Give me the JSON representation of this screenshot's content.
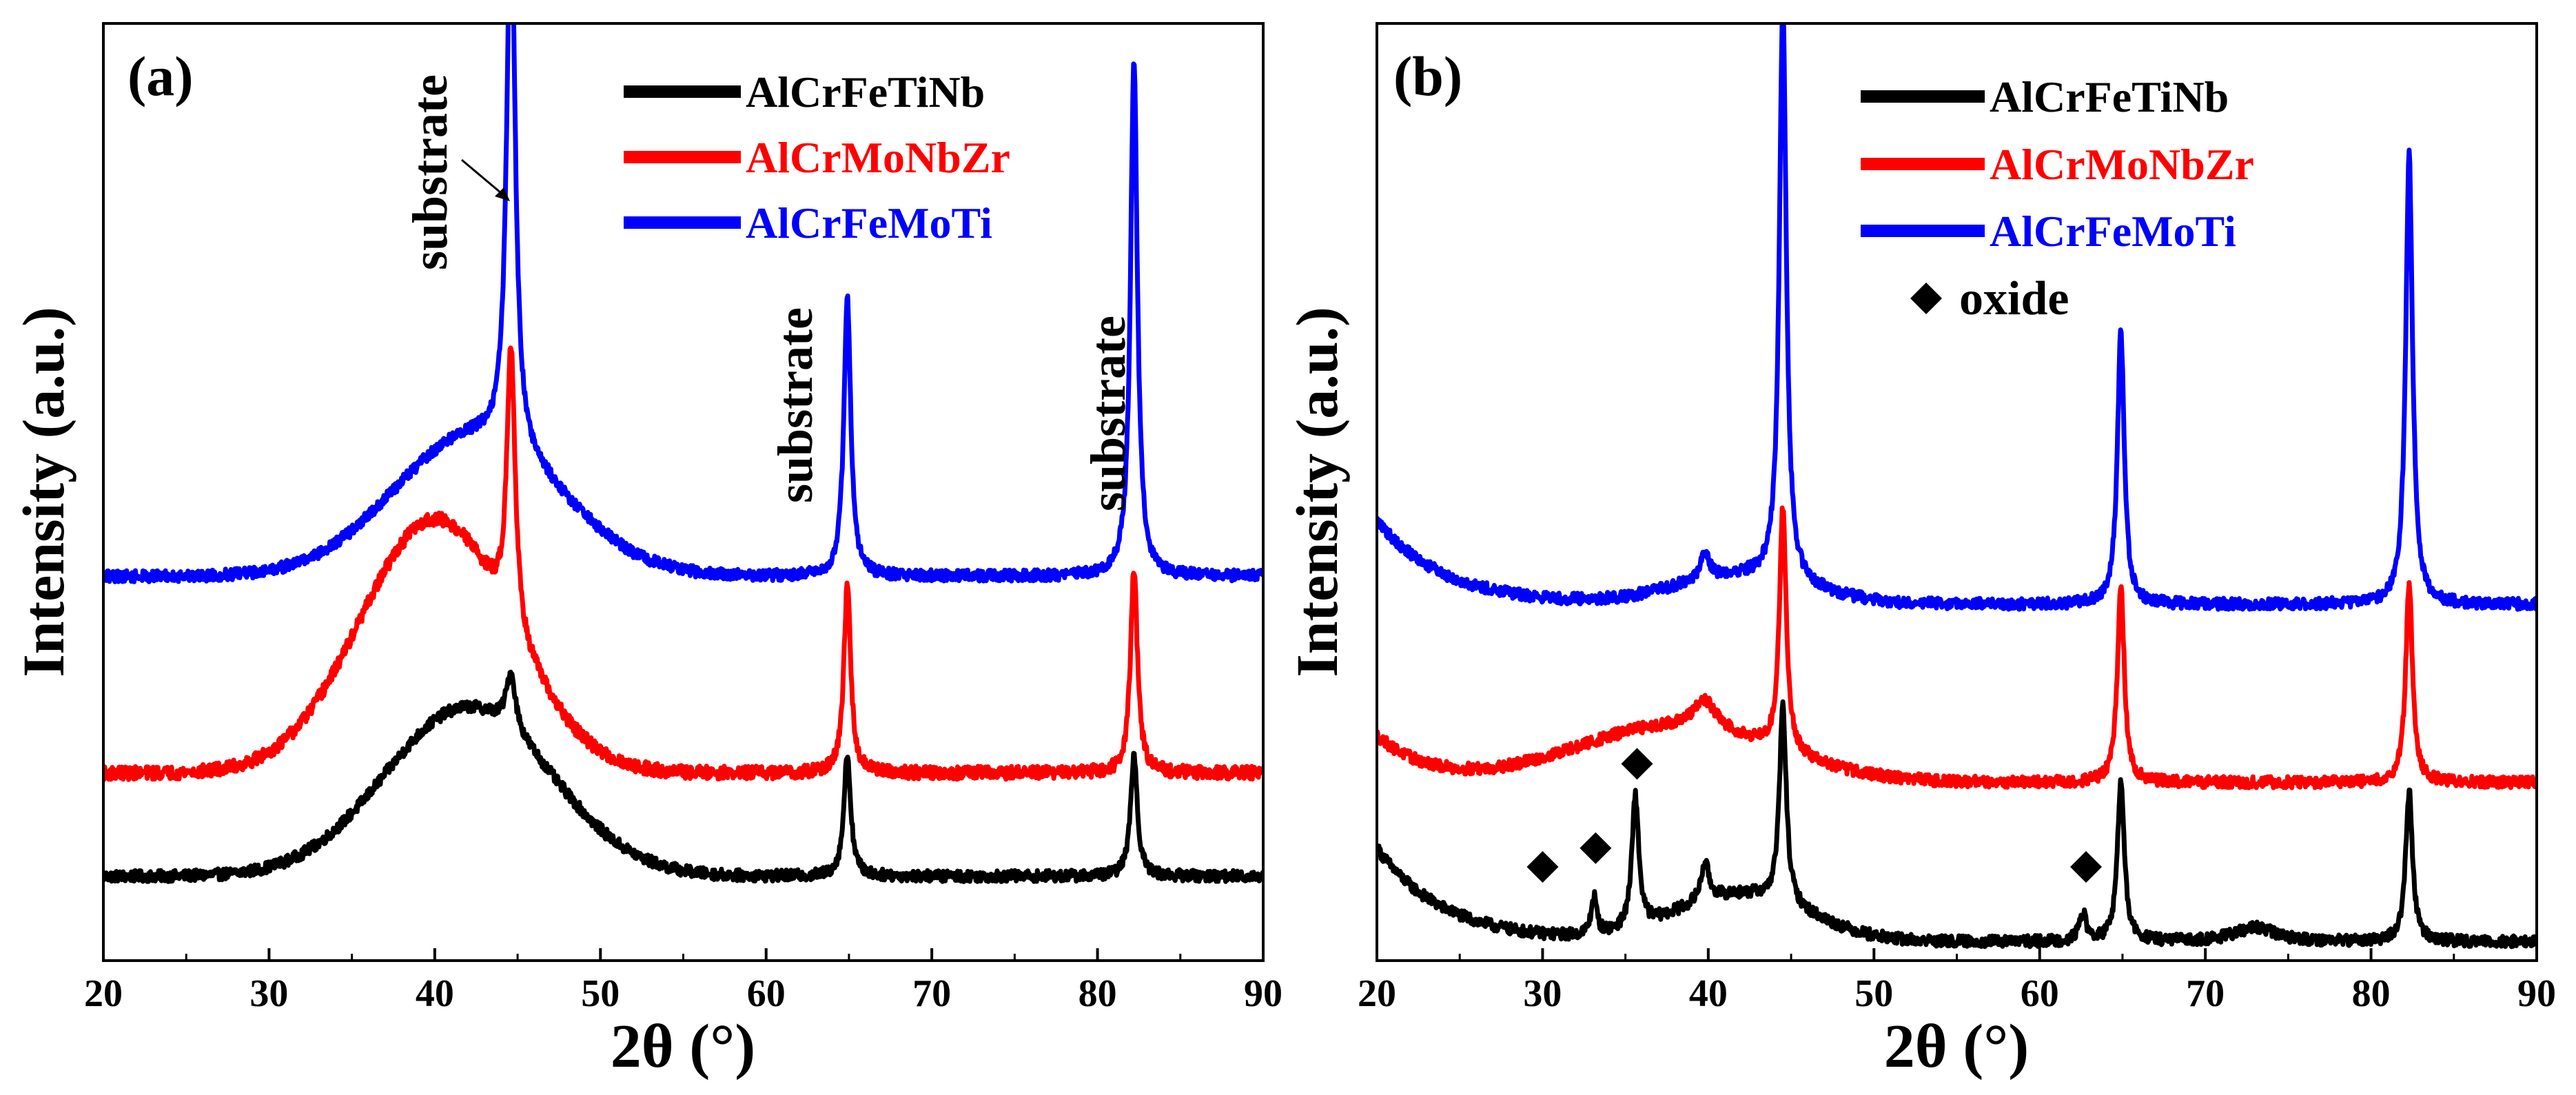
{
  "figure": {
    "panels": [
      {
        "panel_label": "(a)",
        "xlabel": "2θ (°)",
        "ylabel": "Intensity (a.u.)",
        "annotations": [
          "substrate",
          "substrate",
          "substrate"
        ]
      },
      {
        "panel_label": "(b)",
        "xlabel": "2θ (°)",
        "ylabel": "Intensity (a.u.)",
        "oxide_legend": "oxide"
      }
    ]
  },
  "colors": {
    "AlCrFeTiNb": "#000000",
    "AlCrMoNbZr": "#ff0000",
    "AlCrFeMoTi": "#0000ff"
  },
  "chart_data": [
    {
      "type": "line",
      "title": "(a)",
      "xlabel": "2θ (°)",
      "ylabel": "Intensity (a.u.)",
      "xlim": [
        20,
        90
      ],
      "xticks": [
        20,
        30,
        40,
        50,
        60,
        70,
        80,
        90
      ],
      "ylim": [
        0,
        100
      ],
      "y_ticks_shown": false,
      "legend": {
        "position": "top-right",
        "entries": [
          "AlCrFeTiNb",
          "AlCrMoNbZr",
          "AlCrFeMoTi"
        ]
      },
      "annotations": [
        {
          "text": "substrate",
          "x": 44.5,
          "arrow": true
        },
        {
          "text": "substrate",
          "x": 64.8
        },
        {
          "text": "substrate",
          "x": 82.2
        }
      ],
      "series": [
        {
          "name": "AlCrFeTiNb",
          "color": "#000000",
          "baseline": 9,
          "noise": 0.6,
          "features": [
            {
              "type": "hump",
              "center": 42,
              "width": 5,
              "height": 18
            },
            {
              "type": "peak",
              "center": 44.6,
              "width": 0.35,
              "height": 6
            },
            {
              "type": "peak",
              "center": 64.9,
              "width": 0.25,
              "height": 13
            },
            {
              "type": "peak",
              "center": 82.2,
              "width": 0.25,
              "height": 13
            }
          ]
        },
        {
          "name": "AlCrMoNbZr",
          "color": "#ff0000",
          "baseline": 20,
          "noise": 0.7,
          "features": [
            {
              "type": "hump",
              "center": 40,
              "width": 4.5,
              "height": 27
            },
            {
              "type": "peak",
              "center": 44.6,
              "width": 0.3,
              "height": 30
            },
            {
              "type": "peak",
              "center": 64.9,
              "width": 0.25,
              "height": 20
            },
            {
              "type": "peak",
              "center": 82.2,
              "width": 0.25,
              "height": 22
            }
          ]
        },
        {
          "name": "AlCrFeMoTi",
          "color": "#0000ff",
          "baseline": 41,
          "noise": 0.6,
          "features": [
            {
              "type": "hump",
              "center": 42.5,
              "width": 5,
              "height": 15
            },
            {
              "type": "peak",
              "center": 44.6,
              "width": 0.3,
              "height": 60
            },
            {
              "type": "peak",
              "center": 64.9,
              "width": 0.25,
              "height": 30
            },
            {
              "type": "peak",
              "center": 82.2,
              "width": 0.25,
              "height": 55
            }
          ]
        }
      ]
    },
    {
      "type": "line",
      "title": "(b)",
      "xlabel": "2θ (°)",
      "ylabel": "Intensity (a.u.)",
      "xlim": [
        20,
        90
      ],
      "xticks": [
        20,
        30,
        40,
        50,
        60,
        70,
        80,
        90
      ],
      "ylim": [
        0,
        100
      ],
      "y_ticks_shown": false,
      "legend": {
        "position": "top-center",
        "entries": [
          "AlCrFeTiNb",
          "AlCrMoNbZr",
          "AlCrFeMoTi",
          "oxide"
        ]
      },
      "oxide_markers": [
        {
          "x": 30.0,
          "y": 10
        },
        {
          "x": 33.2,
          "y": 12
        },
        {
          "x": 35.7,
          "y": 21
        },
        {
          "x": 62.8,
          "y": 10
        }
      ],
      "series": [
        {
          "name": "AlCrFeTiNb",
          "color": "#000000",
          "baseline": 2,
          "noise": 0.6,
          "features": [
            {
              "type": "tail",
              "start": 20,
              "decay": 4,
              "height": 10
            },
            {
              "type": "hump",
              "center": 42,
              "width": 4,
              "height": 5
            },
            {
              "type": "peak",
              "center": 33.1,
              "width": 0.2,
              "height": 4
            },
            {
              "type": "peak",
              "center": 35.6,
              "width": 0.25,
              "height": 14
            },
            {
              "type": "peak",
              "center": 39.8,
              "width": 0.3,
              "height": 4
            },
            {
              "type": "peak",
              "center": 44.5,
              "width": 0.25,
              "height": 21
            },
            {
              "type": "peak",
              "center": 62.6,
              "width": 0.25,
              "height": 3
            },
            {
              "type": "peak",
              "center": 64.9,
              "width": 0.25,
              "height": 17
            },
            {
              "type": "peak",
              "center": 73,
              "width": 1.5,
              "height": 1.5
            },
            {
              "type": "peak",
              "center": 82.3,
              "width": 0.25,
              "height": 16
            }
          ]
        },
        {
          "name": "AlCrMoNbZr",
          "color": "#ff0000",
          "baseline": 19,
          "noise": 0.6,
          "features": [
            {
              "type": "tail",
              "start": 20,
              "decay": 3,
              "height": 5
            },
            {
              "type": "hump",
              "center": 38,
              "width": 6,
              "height": 6
            },
            {
              "type": "peak",
              "center": 39.8,
              "width": 0.8,
              "height": 3
            },
            {
              "type": "peak",
              "center": 44.5,
              "width": 0.25,
              "height": 26
            },
            {
              "type": "peak",
              "center": 64.9,
              "width": 0.25,
              "height": 21
            },
            {
              "type": "peak",
              "center": 82.3,
              "width": 0.25,
              "height": 21
            }
          ]
        },
        {
          "name": "AlCrFeMoTi",
          "color": "#0000ff",
          "baseline": 38,
          "noise": 0.6,
          "features": [
            {
              "type": "tail",
              "start": 20,
              "decay": 4,
              "height": 9
            },
            {
              "type": "hump",
              "center": 42,
              "width": 4,
              "height": 3
            },
            {
              "type": "peak",
              "center": 39.8,
              "width": 0.3,
              "height": 3
            },
            {
              "type": "peak",
              "center": 44.5,
              "width": 0.25,
              "height": 62
            },
            {
              "type": "peak",
              "center": 64.9,
              "width": 0.25,
              "height": 29
            },
            {
              "type": "peak",
              "center": 82.3,
              "width": 0.25,
              "height": 48
            }
          ]
        }
      ]
    }
  ]
}
